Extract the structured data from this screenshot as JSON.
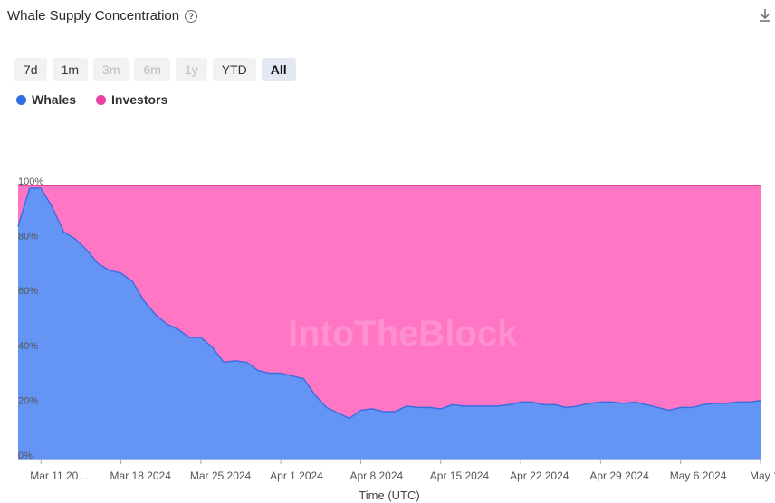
{
  "header": {
    "title": "Whale Supply Concentration",
    "help_icon": "question-circle-icon",
    "download_icon": "download-icon"
  },
  "ranges": [
    {
      "label": "7d",
      "state": "enabled"
    },
    {
      "label": "1m",
      "state": "enabled"
    },
    {
      "label": "3m",
      "state": "disabled"
    },
    {
      "label": "6m",
      "state": "disabled"
    },
    {
      "label": "1y",
      "state": "disabled"
    },
    {
      "label": "YTD",
      "state": "enabled"
    },
    {
      "label": "All",
      "state": "active"
    }
  ],
  "watermark": "IntoTheBlock",
  "chart_data": {
    "type": "area",
    "stacked": true,
    "percent": true,
    "xlabel": "Time (UTC)",
    "ylabel": "",
    "ylim": [
      0,
      100
    ],
    "yticks": [
      "0%",
      "20%",
      "40%",
      "60%",
      "80%",
      "100%"
    ],
    "xticks": [
      "Mar 11 20…",
      "Mar 18 2024",
      "Mar 25 2024",
      "Apr 1 2024",
      "Apr 8 2024",
      "Apr 15 2024",
      "Apr 22 2024",
      "Apr 29 2024",
      "May 6 2024",
      "May 13 2…"
    ],
    "grid": false,
    "legend_position": "top-left",
    "colors": {
      "whales": "#6495f5",
      "investors": "#ff77c4",
      "whales_line": "#3b6ee0",
      "investors_line": "#e8479e"
    },
    "series": [
      {
        "name": "Whales",
        "color": "#2f6fe4",
        "values": [
          85,
          99,
          99,
          92,
          83,
          80.5,
          76.5,
          71.5,
          69,
          68,
          65,
          58,
          53,
          49.5,
          47.5,
          44.5,
          44.5,
          41,
          35.5,
          36,
          35.5,
          32.5,
          31.5,
          31.5,
          30.5,
          29.5,
          23.5,
          19,
          17,
          15,
          18,
          18.5,
          17.5,
          17.5,
          19.5,
          19,
          19,
          18.5,
          20,
          19.5,
          19.5,
          19.5,
          19.5,
          20,
          21,
          21,
          20,
          20,
          19,
          19.5,
          20.5,
          21,
          21,
          20.5,
          21,
          20,
          19,
          18,
          19,
          19,
          20,
          20.5,
          20.5,
          21,
          21,
          21.5
        ]
      },
      {
        "name": "Investors",
        "color": "#ea3fa3",
        "values": [
          15,
          1,
          1,
          8,
          17,
          19.5,
          23.5,
          28.5,
          31,
          32,
          35,
          42,
          47,
          50.5,
          52.5,
          55.5,
          55.5,
          59,
          64.5,
          64,
          64.5,
          67.5,
          68.5,
          68.5,
          69.5,
          70.5,
          76.5,
          81,
          83,
          85,
          82,
          81.5,
          82.5,
          82.5,
          80.5,
          81,
          81,
          81.5,
          80,
          80.5,
          80.5,
          80.5,
          80.5,
          80,
          79,
          79,
          80,
          80,
          81,
          80.5,
          79.5,
          79,
          79,
          79.5,
          79,
          80,
          81,
          82,
          81,
          81,
          80,
          79.5,
          79.5,
          79,
          79,
          78.5
        ]
      }
    ]
  }
}
